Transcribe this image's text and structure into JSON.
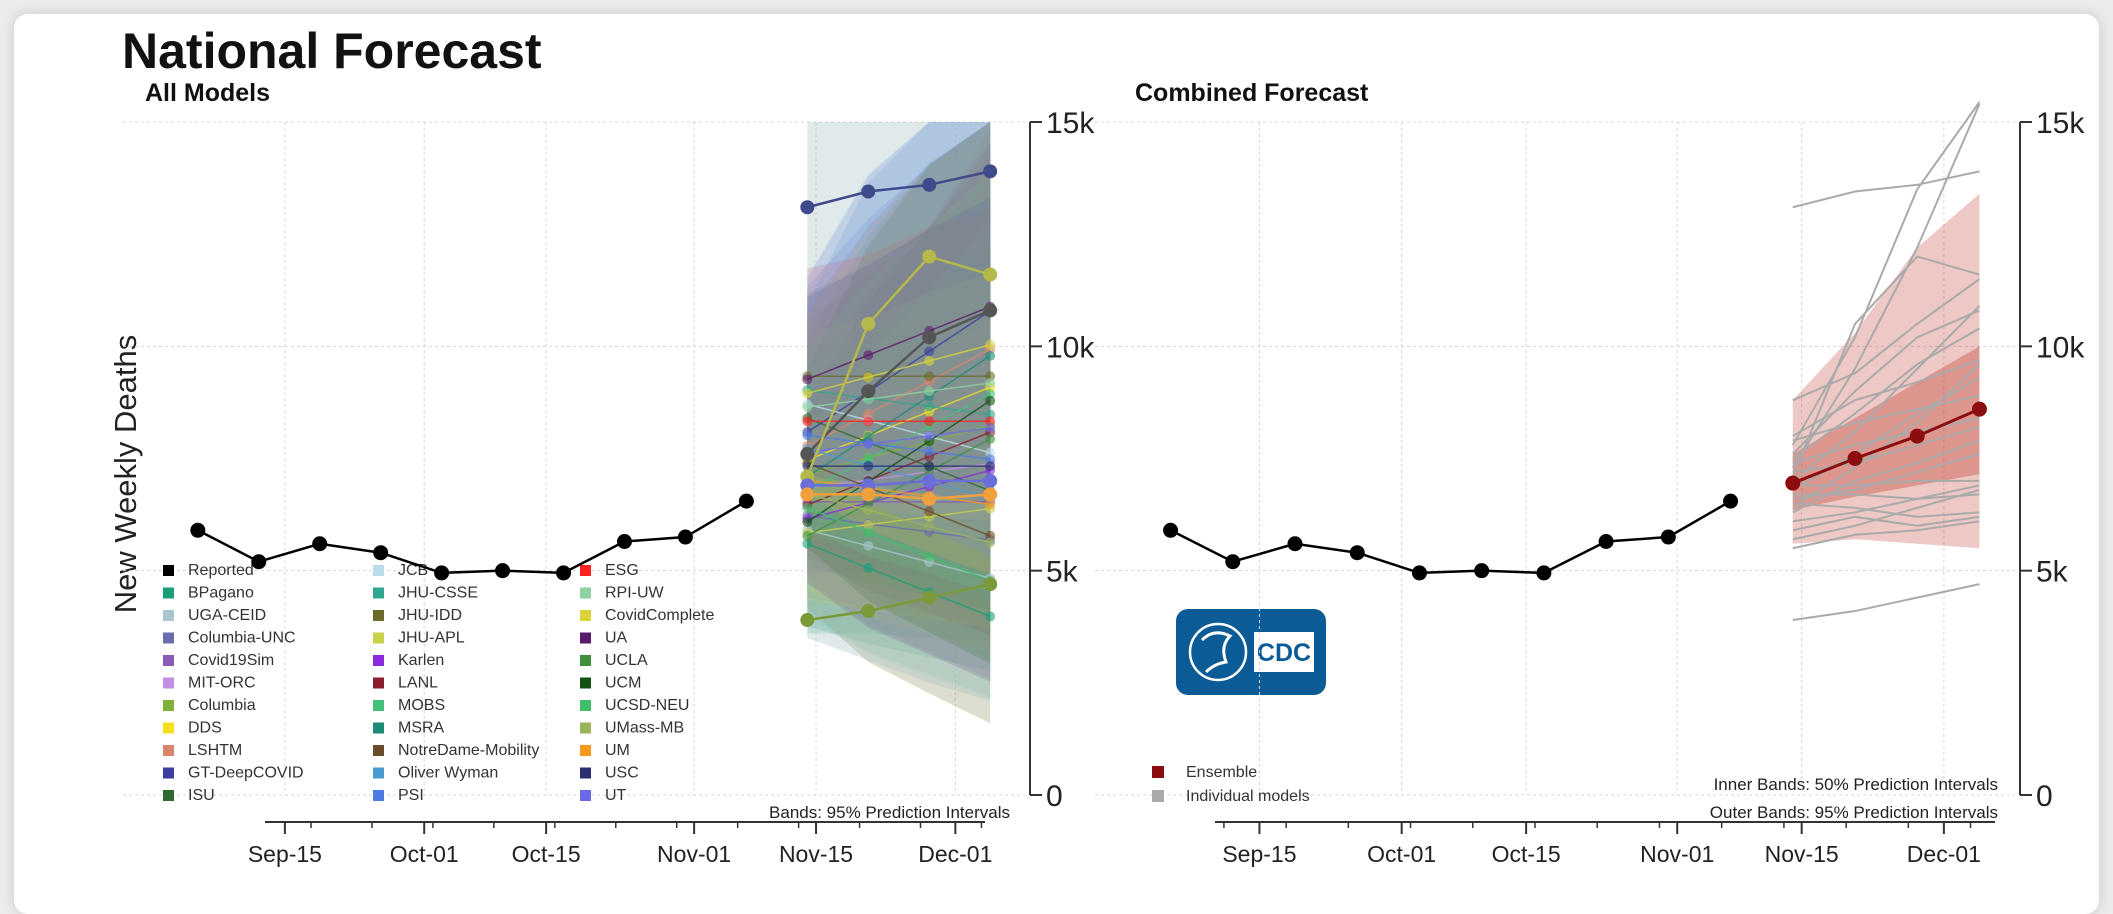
{
  "title": "National Forecast",
  "colors": {
    "reported": "#000000",
    "ensemble": "#8b0d0d",
    "individual": "#aaaaaa",
    "cdc_blue": "#0b5b96"
  },
  "chart_data": [
    {
      "type": "line",
      "panel": "left",
      "title": "All Models",
      "ylabel": "New Weekly Deaths",
      "ylim": [
        0,
        15000
      ],
      "yticks": [
        0,
        5000,
        10000,
        15000
      ],
      "ytick_labels": [
        "0",
        "5k",
        "10k",
        "15k"
      ],
      "xticks": [
        "Sep-15",
        "Oct-01",
        "Oct-15",
        "Nov-01",
        "Nov-15",
        "Dec-01"
      ],
      "grid": true,
      "reported": {
        "name": "Reported",
        "x": [
          "2020-09-05",
          "2020-09-12",
          "2020-09-19",
          "2020-09-26",
          "2020-10-03",
          "2020-10-10",
          "2020-10-17",
          "2020-10-24",
          "2020-10-31",
          "2020-11-07"
        ],
        "y": [
          5900,
          5200,
          5600,
          5400,
          4950,
          5000,
          4950,
          5650,
          5750,
          6550
        ]
      },
      "forecast_x": [
        "2020-11-14",
        "2020-11-21",
        "2020-11-28",
        "2020-12-05"
      ],
      "highlighted_forecasts": [
        {
          "color": "#3f4a8a",
          "y": [
            13100,
            13450,
            13600,
            13900
          ]
        },
        {
          "color": "#555555",
          "y": [
            7600,
            9000,
            10200,
            10800
          ]
        },
        {
          "color": "#b5b84a",
          "y": [
            7100,
            10500,
            12000,
            11600
          ]
        },
        {
          "color": "#6a6fd8",
          "y": [
            6900,
            6900,
            7000,
            7000
          ]
        },
        {
          "color": "#f0a03c",
          "y": [
            6700,
            6700,
            6600,
            6700
          ]
        },
        {
          "color": "#7a9a3a",
          "y": [
            3900,
            4100,
            4400,
            4700
          ]
        }
      ],
      "legend_entries": [
        {
          "label": "Reported",
          "color": "#000000"
        },
        {
          "label": "BPagano",
          "color": "#1a9e77"
        },
        {
          "label": "UGA-CEID",
          "color": "#a9c6d0"
        },
        {
          "label": "Columbia-UNC",
          "color": "#6b6bb0"
        },
        {
          "label": "Covid19Sim",
          "color": "#8a5bb5"
        },
        {
          "label": "MIT-ORC",
          "color": "#c38ee3"
        },
        {
          "label": "Columbia",
          "color": "#7fb23b"
        },
        {
          "label": "DDS",
          "color": "#f4e11c"
        },
        {
          "label": "LSHTM",
          "color": "#d9856e"
        },
        {
          "label": "GT-DeepCOVID",
          "color": "#3a3fa0"
        },
        {
          "label": "ISU",
          "color": "#2d6a2d"
        },
        {
          "label": "JCB",
          "color": "#b8dde8"
        },
        {
          "label": "JHU-CSSE",
          "color": "#30a58f"
        },
        {
          "label": "JHU-IDD",
          "color": "#6b6b2a"
        },
        {
          "label": "JHU-APL",
          "color": "#c9d14b"
        },
        {
          "label": "Karlen",
          "color": "#8a2be2"
        },
        {
          "label": "LANL",
          "color": "#8b1e2e"
        },
        {
          "label": "MOBS",
          "color": "#45c07a"
        },
        {
          "label": "MSRA",
          "color": "#1f8a7a"
        },
        {
          "label": "NotreDame-Mobility",
          "color": "#6a4b2a"
        },
        {
          "label": "Oliver Wyman",
          "color": "#4a9ad0"
        },
        {
          "label": "PSI",
          "color": "#4f7ae0"
        },
        {
          "label": "ESG",
          "color": "#ff2020"
        },
        {
          "label": "RPI-UW",
          "color": "#8fd1a0"
        },
        {
          "label": "CovidComplete",
          "color": "#d8d43a"
        },
        {
          "label": "UA",
          "color": "#5a1a6a"
        },
        {
          "label": "UCLA",
          "color": "#3f8f3f"
        },
        {
          "label": "UCM",
          "color": "#145214"
        },
        {
          "label": "UCSD-NEU",
          "color": "#3fbf6a"
        },
        {
          "label": "UMass-MB",
          "color": "#9ab45a"
        },
        {
          "label": "UM",
          "color": "#f59a1c"
        },
        {
          "label": "USC",
          "color": "#2a2f70"
        },
        {
          "label": "UT",
          "color": "#6a6ae8"
        }
      ],
      "note": "Bands: 95% Prediction Intervals"
    },
    {
      "type": "line",
      "panel": "right",
      "title": "Combined Forecast",
      "ylim": [
        0,
        15000
      ],
      "yticks": [
        0,
        5000,
        10000,
        15000
      ],
      "ytick_labels": [
        "0",
        "5k",
        "10k",
        "15k"
      ],
      "xticks": [
        "Sep-15",
        "Oct-01",
        "Oct-15",
        "Nov-01",
        "Nov-15",
        "Dec-01"
      ],
      "grid": true,
      "reported": {
        "name": "Reported",
        "x": [
          "2020-09-05",
          "2020-09-12",
          "2020-09-19",
          "2020-09-26",
          "2020-10-03",
          "2020-10-10",
          "2020-10-17",
          "2020-10-24",
          "2020-10-31",
          "2020-11-07"
        ],
        "y": [
          5900,
          5200,
          5600,
          5400,
          4950,
          5000,
          4950,
          5650,
          5750,
          6550
        ]
      },
      "ensemble": {
        "name": "Ensemble",
        "x": [
          "2020-11-14",
          "2020-11-21",
          "2020-11-28",
          "2020-12-05"
        ],
        "y": [
          6950,
          7500,
          8000,
          8600
        ],
        "band50_low": [
          6350,
          6650,
          6900,
          7150
        ],
        "band50_high": [
          7600,
          8400,
          9200,
          10000
        ],
        "band95_low": [
          5600,
          5700,
          5600,
          5500
        ],
        "band95_high": [
          8800,
          10300,
          12200,
          13400
        ]
      },
      "individual_models": [
        [
          13100,
          13450,
          13600,
          13900
        ],
        [
          7600,
          9000,
          10200,
          10800
        ],
        [
          7100,
          10500,
          12000,
          11600
        ],
        [
          6900,
          6900,
          7000,
          7000
        ],
        [
          6700,
          6700,
          6600,
          6700
        ],
        [
          3900,
          4100,
          4400,
          4700
        ],
        [
          7300,
          9500,
          12200,
          15400
        ],
        [
          7800,
          10200,
          13500,
          15700
        ],
        [
          8800,
          9400,
          10500,
          11500
        ],
        [
          7500,
          8500,
          9600,
          10400
        ],
        [
          6800,
          7600,
          8500,
          9300
        ],
        [
          7000,
          8100,
          9500,
          10900
        ],
        [
          6300,
          7000,
          7400,
          7900
        ],
        [
          7200,
          7400,
          7800,
          8200
        ],
        [
          6500,
          6400,
          6200,
          6300
        ],
        [
          6100,
          6300,
          6600,
          6900
        ],
        [
          7900,
          8300,
          8600,
          8900
        ],
        [
          5900,
          6200,
          6000,
          6200
        ],
        [
          6400,
          7300,
          8300,
          9600
        ],
        [
          8000,
          8800,
          9200,
          9700
        ],
        [
          5700,
          6000,
          6400,
          6800
        ],
        [
          6600,
          6800,
          7200,
          7600
        ],
        [
          7400,
          7800,
          8100,
          8400
        ],
        [
          5500,
          5800,
          5900,
          6100
        ]
      ],
      "legend_entries": [
        {
          "label": "Ensemble",
          "color": "#8b0d0d"
        },
        {
          "label": "Individual models",
          "color": "#aaaaaa"
        }
      ],
      "note_lines": [
        "Inner Bands: 50% Prediction Intervals",
        "Outer Bands: 95% Prediction Intervals"
      ]
    }
  ],
  "logo": {
    "text": "CDC"
  }
}
